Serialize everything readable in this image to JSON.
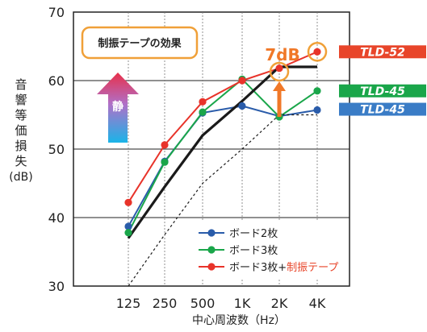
{
  "chart_data": {
    "type": "line",
    "xlabel": "中心周波数（Hz）",
    "ylabel": [
      "音",
      "響",
      "等",
      "価",
      "損",
      "失",
      "(dB)"
    ],
    "categories": [
      "125",
      "250",
      "500",
      "1K",
      "2K",
      "4K"
    ],
    "yticks": [
      "30",
      "40",
      "50",
      "60",
      "70"
    ],
    "ylim": [
      30,
      70
    ],
    "grid": true,
    "legend_position": "bottom-right",
    "series": [
      {
        "name": "ボード2枚",
        "color": "#2a5caa",
        "marker": true,
        "values": [
          38.7,
          48.2,
          55.3,
          56.3,
          54.8,
          55.7
        ]
      },
      {
        "name": "ボード3枚",
        "color": "#1aa64a",
        "marker": true,
        "values": [
          37.8,
          48.1,
          55.4,
          60.2,
          54.7,
          58.5
        ]
      },
      {
        "name": "ボード3枚+制振テープ",
        "legend_parts": [
          "ボード3枚+",
          "制振テープ"
        ],
        "color": "#e8332a",
        "marker": true,
        "values": [
          42.2,
          50.6,
          56.9,
          60.0,
          61.8,
          64.2
        ]
      },
      {
        "name": "",
        "color": "#1a1a1a",
        "marker": false,
        "style": "solid-thick",
        "values": [
          37.0,
          44.5,
          52.0,
          57.0,
          62.0,
          62.0
        ]
      },
      {
        "name": "",
        "color": "#1a1a1a",
        "marker": false,
        "style": "dashed",
        "values": [
          30.0,
          37.5,
          45.0,
          50.0,
          55.0,
          55.0
        ]
      }
    ],
    "annotations": {
      "box_text": "制振テープの効果",
      "arrow_text": "静",
      "delta_text": "7dB",
      "tags": [
        {
          "text": "TLD-52",
          "color": "#e8452a",
          "value": 64.2
        },
        {
          "text": "TLD-45",
          "color": "#1aa64a",
          "value": 58.5
        },
        {
          "text": "TLD-45",
          "color": "#3a7cc6",
          "value": 55.7
        }
      ]
    }
  }
}
